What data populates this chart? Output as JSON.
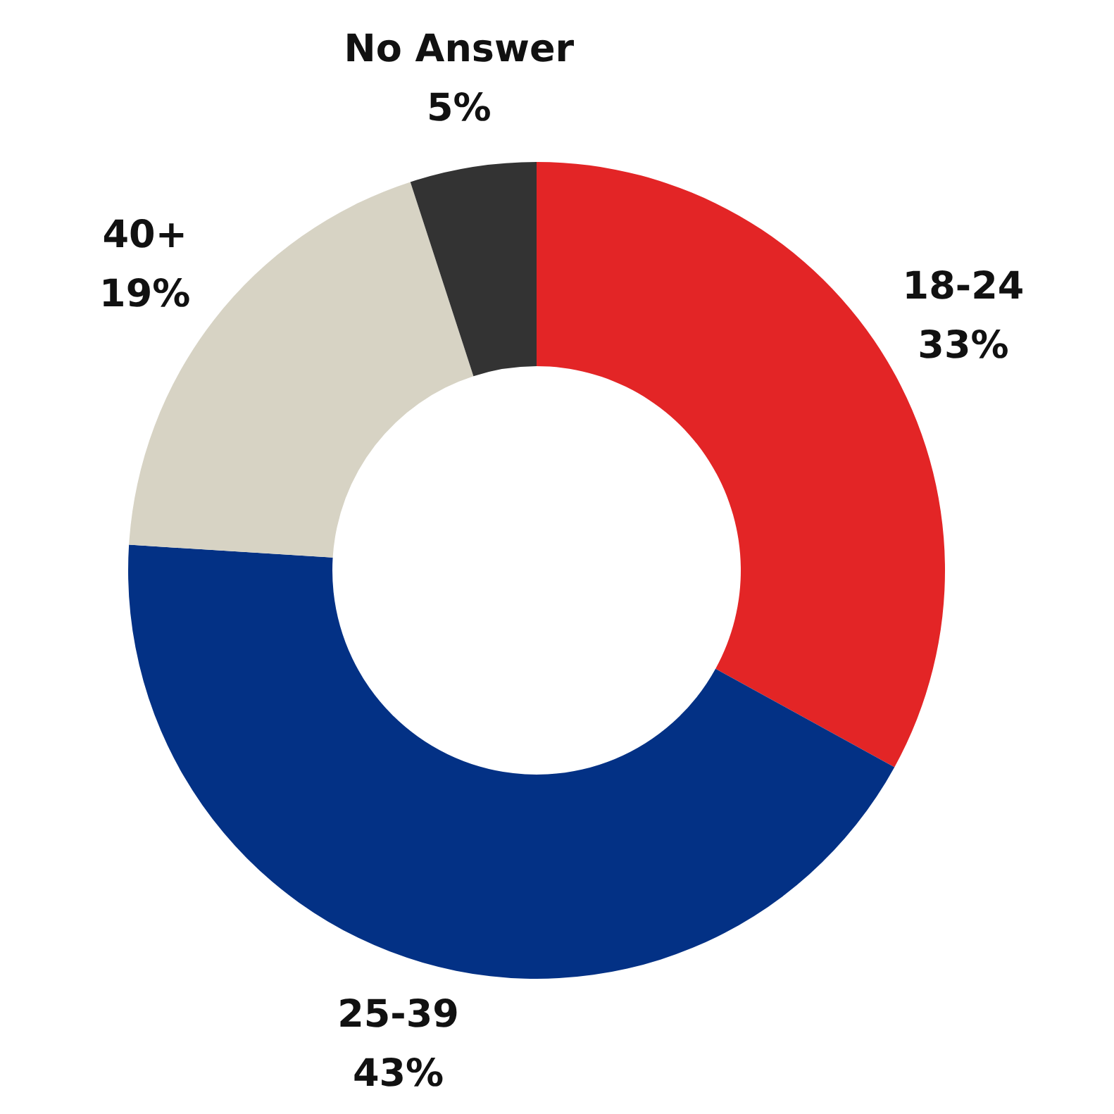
{
  "chart_data": {
    "type": "donut",
    "categories": [
      "18-24",
      "25-39",
      "40+",
      "No Answer"
    ],
    "values": [
      33,
      43,
      19,
      5
    ],
    "colors": [
      "#e32526",
      "#033185",
      "#d7d3c4",
      "#333333"
    ],
    "value_labels": [
      "33%",
      "43%",
      "19%",
      "5%"
    ],
    "legend": false
  }
}
